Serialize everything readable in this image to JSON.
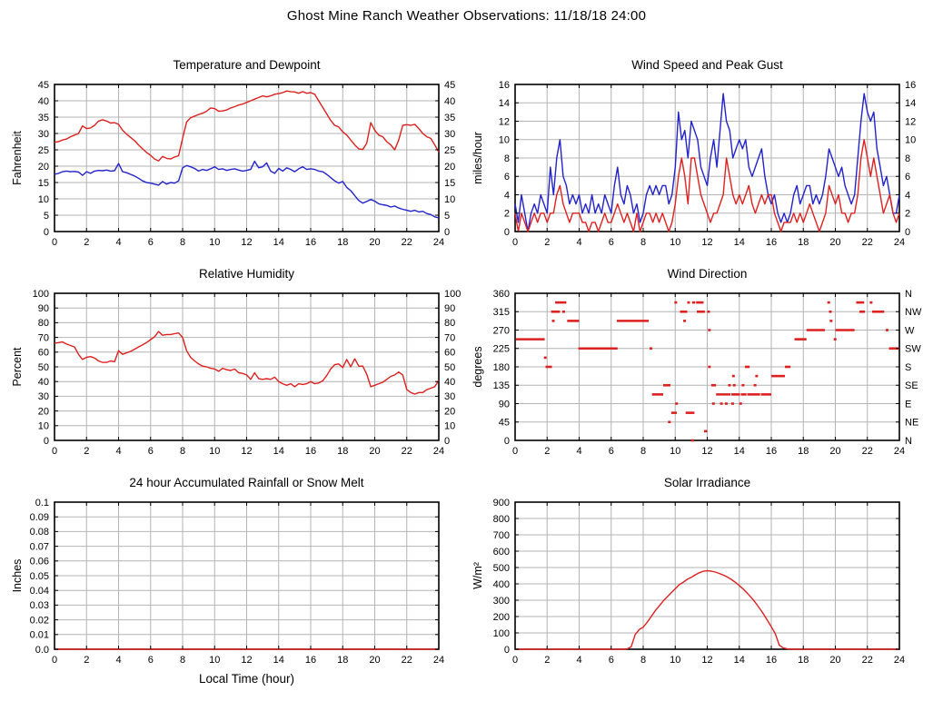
{
  "page_title": "Ghost Mine Ranch Weather Observations: 11/18/18 24:00",
  "colors": {
    "red": "#dd2020",
    "blue": "#2222cc",
    "grid": "#b4b4b4",
    "frame": "#000000"
  },
  "chart_data": [
    {
      "type": "line",
      "title": "Temperature and Dewpoint",
      "ylabel": "Fahrenheit",
      "xlim": [
        0,
        24
      ],
      "xticks": [
        0,
        2,
        4,
        6,
        8,
        10,
        12,
        14,
        16,
        18,
        20,
        22,
        24
      ],
      "ylim": [
        0,
        45
      ],
      "yticks": [
        0,
        5,
        10,
        15,
        20,
        25,
        30,
        35,
        40,
        45
      ],
      "right_labels": "mirror",
      "series": [
        {
          "name": "temperature",
          "color": "#dd2020",
          "x_start": 0,
          "x_step": 0.25,
          "values": [
            27.3,
            27.5,
            28,
            28.3,
            29,
            29.5,
            30,
            32.3,
            31.5,
            31.7,
            32.5,
            33.8,
            34.2,
            33.8,
            33.2,
            33.3,
            32.8,
            31,
            29.8,
            28.8,
            27.8,
            26.5,
            25.3,
            24.2,
            23.3,
            22.2,
            21.6,
            23,
            22.4,
            22.2,
            22.8,
            23.2,
            28.5,
            33.5,
            34.8,
            35.3,
            35.8,
            36.2,
            36.8,
            37.8,
            37.6,
            36.8,
            36.9,
            37.2,
            37.8,
            38.2,
            38.7,
            39,
            39.5,
            40,
            40.5,
            41,
            41.5,
            41.2,
            41.5,
            42,
            42.2,
            42.5,
            43,
            42.8,
            42.7,
            42.3,
            42.8,
            42.3,
            42.5,
            42,
            40,
            38,
            36,
            34,
            32.5,
            32,
            30.5,
            29.5,
            28,
            26.5,
            25.3,
            25.1,
            27,
            33.3,
            31,
            29.5,
            29,
            27.5,
            26.5,
            25,
            28,
            32.5,
            32.7,
            32.5,
            32.8,
            31.5,
            30,
            29,
            28.5,
            26.5,
            24.3
          ]
        },
        {
          "name": "dewpoint",
          "color": "#2222cc",
          "x_start": 0,
          "x_step": 0.25,
          "values": [
            17.5,
            17.8,
            18.3,
            18.5,
            18.3,
            18.4,
            18.2,
            17.2,
            18.3,
            17.8,
            18.5,
            18.7,
            18.6,
            18.8,
            18.5,
            18.6,
            20.8,
            18.3,
            18,
            17.5,
            17,
            16.3,
            15.5,
            15,
            14.8,
            14.5,
            14.2,
            15.3,
            14.5,
            15,
            14.8,
            15.5,
            19.5,
            20.2,
            19.8,
            19.3,
            18.5,
            19,
            18.7,
            19.2,
            19.8,
            19,
            19.2,
            18.7,
            19,
            19.2,
            18.8,
            18.5,
            18.7,
            19,
            21.5,
            19.5,
            19.8,
            21,
            18.5,
            17.8,
            19.3,
            18.5,
            19.5,
            19,
            18.3,
            19.2,
            19.8,
            19,
            19.2,
            19,
            18.5,
            18.3,
            17.5,
            16.5,
            15.5,
            14.8,
            15.3,
            13.5,
            12.5,
            11,
            9.5,
            8.7,
            9.2,
            9.8,
            9.3,
            8.5,
            8.2,
            8,
            7.5,
            7.8,
            7.2,
            6.8,
            6.5,
            6.2,
            6.5,
            6,
            6.2,
            5.5,
            5.2,
            4.5,
            4.2
          ]
        }
      ]
    },
    {
      "type": "line",
      "title": "Wind Speed and Peak Gust",
      "ylabel": "miles/hour",
      "xlim": [
        0,
        24
      ],
      "xticks": [
        0,
        2,
        4,
        6,
        8,
        10,
        12,
        14,
        16,
        18,
        20,
        22,
        24
      ],
      "ylim": [
        0,
        16
      ],
      "yticks": [
        0,
        2,
        4,
        6,
        8,
        10,
        12,
        14,
        16
      ],
      "right_labels": "mirror",
      "series": [
        {
          "name": "peak_gust",
          "color": "#2222cc",
          "x_start": 0,
          "x_step": 0.2,
          "values": [
            3,
            1,
            4,
            2,
            0,
            2,
            3,
            2,
            4,
            3,
            2,
            7,
            4,
            8,
            10,
            6,
            5,
            3,
            4,
            3,
            4,
            2,
            3,
            2,
            4,
            2,
            3,
            2,
            4,
            3,
            2,
            5,
            7,
            4,
            3,
            5,
            4,
            2,
            3,
            1,
            2,
            4,
            5,
            4,
            5,
            4,
            5,
            5,
            3,
            4,
            7,
            13,
            10,
            11,
            8,
            12,
            11,
            10,
            7,
            6,
            5,
            8,
            10,
            7,
            11,
            15,
            12,
            11,
            8,
            9,
            10,
            9,
            10,
            7,
            6,
            7,
            8,
            9,
            6,
            4,
            3,
            4,
            2,
            1,
            2,
            1,
            2,
            4,
            5,
            3,
            4,
            5,
            5,
            3,
            4,
            3,
            4,
            6,
            9,
            8,
            7,
            6,
            7,
            5,
            4,
            3,
            4,
            8,
            12,
            15,
            13,
            12,
            13,
            9,
            7,
            5,
            6,
            4,
            2,
            2,
            4
          ]
        },
        {
          "name": "wind_speed",
          "color": "#dd2020",
          "x_start": 0,
          "x_step": 0.2,
          "values": [
            2,
            0,
            2,
            1,
            0,
            1,
            2,
            1,
            2,
            2,
            1,
            2,
            2,
            4,
            5,
            3,
            2,
            1,
            2,
            2,
            2,
            1,
            1,
            0,
            1,
            1,
            0,
            1,
            2,
            1,
            1,
            2,
            3,
            2,
            1,
            2,
            1,
            0,
            2,
            0,
            1,
            2,
            2,
            1,
            2,
            1,
            2,
            1,
            0,
            1,
            3,
            6,
            8,
            6,
            3,
            8,
            8,
            6,
            4,
            3,
            2,
            1,
            2,
            2,
            3,
            4,
            8,
            6,
            4,
            3,
            4,
            3,
            4,
            5,
            3,
            2,
            3,
            4,
            3,
            4,
            4,
            2,
            1,
            0,
            1,
            1,
            1,
            2,
            1,
            2,
            1,
            2,
            3,
            2,
            1,
            0,
            1,
            2,
            5,
            4,
            3,
            4,
            2,
            2,
            1,
            2,
            2,
            4,
            8,
            10,
            8,
            6,
            8,
            6,
            4,
            2,
            3,
            4,
            2,
            1,
            2
          ]
        }
      ]
    },
    {
      "type": "line",
      "title": "Relative Humidity",
      "ylabel": "Percent",
      "xlim": [
        0,
        24
      ],
      "xticks": [
        0,
        2,
        4,
        6,
        8,
        10,
        12,
        14,
        16,
        18,
        20,
        22,
        24
      ],
      "ylim": [
        0,
        100
      ],
      "yticks": [
        0,
        10,
        20,
        30,
        40,
        50,
        60,
        70,
        80,
        90,
        100
      ],
      "right_labels": "mirror",
      "series": [
        {
          "name": "relative_humidity",
          "color": "#dd2020",
          "x_start": 0,
          "x_step": 0.25,
          "values": [
            66,
            66.5,
            67,
            65.5,
            64.5,
            63.5,
            58.5,
            55,
            56.5,
            57,
            56,
            54,
            53,
            53,
            54,
            53.5,
            61,
            58.5,
            59.5,
            60.5,
            62,
            63.5,
            65,
            66.5,
            68.5,
            70.5,
            74,
            71.5,
            72,
            72,
            72.5,
            73,
            70,
            61,
            56.5,
            54,
            52,
            50.5,
            50,
            49,
            48.5,
            47,
            49,
            48,
            47.5,
            48.5,
            46,
            45.5,
            44.5,
            41.5,
            46,
            42,
            41.5,
            42,
            41.5,
            43,
            40,
            38.5,
            37.5,
            38.5,
            36.5,
            38.5,
            38,
            38.5,
            40,
            38.5,
            39,
            40.5,
            44,
            48.5,
            51.5,
            52,
            49.5,
            55,
            50,
            55.5,
            50.5,
            50.5,
            45,
            36.5,
            37.5,
            38.5,
            39.5,
            41.5,
            43.5,
            44.5,
            46.5,
            44.5,
            34.5,
            32.5,
            31.5,
            32.5,
            32.5,
            34.5,
            35.5,
            36.5,
            41
          ]
        }
      ]
    },
    {
      "type": "segments",
      "title": "Wind Direction",
      "ylabel": "degrees",
      "xlim": [
        0,
        24
      ],
      "xticks": [
        0,
        2,
        4,
        6,
        8,
        10,
        12,
        14,
        16,
        18,
        20,
        22,
        24
      ],
      "ylim": [
        0,
        360
      ],
      "yticks": [
        0,
        45,
        90,
        135,
        180,
        225,
        270,
        315,
        360
      ],
      "right_labels": [
        "N",
        "NE",
        "E",
        "SE",
        "S",
        "SW",
        "W",
        "NW",
        "N"
      ],
      "seg_color": "#dd2020",
      "segments": [
        [
          0.05,
          1.85,
          247.5
        ],
        [
          1.8,
          1.9,
          202.5
        ],
        [
          1.9,
          2.3,
          180
        ],
        [
          2.3,
          2.4,
          292.5
        ],
        [
          2.25,
          2.8,
          315
        ],
        [
          2.95,
          3.05,
          315
        ],
        [
          2.5,
          3.2,
          337.5
        ],
        [
          3.25,
          4.0,
          292.5
        ],
        [
          3.95,
          6.4,
          225
        ],
        [
          6.35,
          8.35,
          292.5
        ],
        [
          8.4,
          8.55,
          225
        ],
        [
          8.55,
          9.25,
          112.5
        ],
        [
          9.25,
          9.7,
          135
        ],
        [
          9.55,
          9.65,
          45
        ],
        [
          9.75,
          10.1,
          67.5
        ],
        [
          9.95,
          10.05,
          337.5
        ],
        [
          10.0,
          10.1,
          90
        ],
        [
          10.3,
          10.75,
          315
        ],
        [
          10.5,
          10.6,
          292.5
        ],
        [
          10.65,
          11.2,
          67.5
        ],
        [
          10.75,
          10.9,
          337.5
        ],
        [
          11.0,
          11.1,
          0
        ],
        [
          11.05,
          11.25,
          337.5
        ],
        [
          11.3,
          11.4,
          337.5
        ],
        [
          11.45,
          11.55,
          337.5
        ],
        [
          11.6,
          11.7,
          337.5
        ],
        [
          11.35,
          11.85,
          315
        ],
        [
          11.8,
          12.0,
          22.5
        ],
        [
          12.0,
          12.1,
          315
        ],
        [
          12.05,
          12.15,
          270
        ],
        [
          12.05,
          12.15,
          180
        ],
        [
          12.25,
          12.55,
          135
        ],
        [
          12.3,
          12.4,
          90
        ],
        [
          12.55,
          13.45,
          112.5
        ],
        [
          12.8,
          12.9,
          90
        ],
        [
          13.1,
          13.2,
          90
        ],
        [
          13.3,
          13.4,
          135
        ],
        [
          13.55,
          13.65,
          157.5
        ],
        [
          13.5,
          14.05,
          112.5
        ],
        [
          13.5,
          13.6,
          90
        ],
        [
          13.6,
          13.7,
          135
        ],
        [
          14.0,
          14.1,
          90
        ],
        [
          14.1,
          14.45,
          112.5
        ],
        [
          14.15,
          14.3,
          135
        ],
        [
          14.35,
          14.65,
          180
        ],
        [
          14.5,
          15.3,
          112.5
        ],
        [
          14.9,
          15.0,
          135
        ],
        [
          15.0,
          15.1,
          157.5
        ],
        [
          15.35,
          16.0,
          112.5
        ],
        [
          16.0,
          16.85,
          157.5
        ],
        [
          16.85,
          17.2,
          180
        ],
        [
          17.45,
          18.2,
          247.5
        ],
        [
          18.2,
          19.35,
          270
        ],
        [
          19.5,
          19.6,
          337.5
        ],
        [
          19.6,
          19.7,
          315
        ],
        [
          19.65,
          19.8,
          292.5
        ],
        [
          19.9,
          20.0,
          247.5
        ],
        [
          20.0,
          21.2,
          270
        ],
        [
          21.3,
          21.8,
          337.5
        ],
        [
          21.5,
          21.85,
          315
        ],
        [
          22.15,
          22.3,
          337.5
        ],
        [
          22.3,
          23.05,
          315
        ],
        [
          23.15,
          23.3,
          270
        ],
        [
          23.35,
          24.0,
          225
        ]
      ]
    },
    {
      "type": "line",
      "title": "24 hour Accumulated Rainfall or Snow Melt",
      "ylabel": "Inches",
      "xlabel": "Local Time (hour)",
      "xlim": [
        0,
        24
      ],
      "xticks": [
        0,
        2,
        4,
        6,
        8,
        10,
        12,
        14,
        16,
        18,
        20,
        22,
        24
      ],
      "ylim": [
        0,
        0.1
      ],
      "yticks": [
        0,
        0.01,
        0.02,
        0.03,
        0.04,
        0.05,
        0.06,
        0.07,
        0.08,
        0.09,
        0.1
      ],
      "ytick_labels": [
        "0.0",
        "0.01",
        "0.02",
        "0.03",
        "0.04",
        "0.05",
        "0.06",
        "0.07",
        "0.08",
        "0.09",
        "0.1"
      ],
      "right_labels": null,
      "series": [
        {
          "name": "accumulated_rainfall",
          "color": "#dd2020",
          "x_start": 0,
          "x_step": 24,
          "values": [
            0,
            0
          ]
        }
      ]
    },
    {
      "type": "line",
      "title": "Solar Irradiance",
      "ylabel": "W/m²",
      "xlim": [
        0,
        24
      ],
      "xticks": [
        0,
        2,
        4,
        6,
        8,
        10,
        12,
        14,
        16,
        18,
        20,
        22,
        24
      ],
      "ylim": [
        0,
        900
      ],
      "yticks": [
        0,
        100,
        200,
        300,
        400,
        500,
        600,
        700,
        800,
        900
      ],
      "right_labels": null,
      "series": [
        {
          "name": "solar_irradiance",
          "color": "#dd2020",
          "x_start": 0,
          "x_step": 0.25,
          "values": [
            0,
            0,
            0,
            0,
            0,
            0,
            0,
            0,
            0,
            0,
            0,
            0,
            0,
            0,
            0,
            0,
            0,
            0,
            0,
            0,
            0,
            0,
            0,
            0,
            0,
            0,
            0,
            0,
            2,
            15,
            90,
            120,
            135,
            165,
            200,
            235,
            265,
            295,
            320,
            345,
            370,
            395,
            410,
            428,
            440,
            455,
            468,
            477,
            480,
            478,
            472,
            464,
            454,
            442,
            428,
            410,
            390,
            368,
            343,
            316,
            286,
            253,
            217,
            178,
            138,
            95,
            25,
            8,
            2,
            0,
            0,
            0,
            0,
            0,
            0,
            0,
            0,
            0,
            0,
            0,
            0,
            0,
            0,
            0,
            0,
            0,
            0,
            0,
            0,
            0,
            0,
            0,
            0,
            0,
            0,
            0,
            0
          ]
        }
      ]
    }
  ]
}
